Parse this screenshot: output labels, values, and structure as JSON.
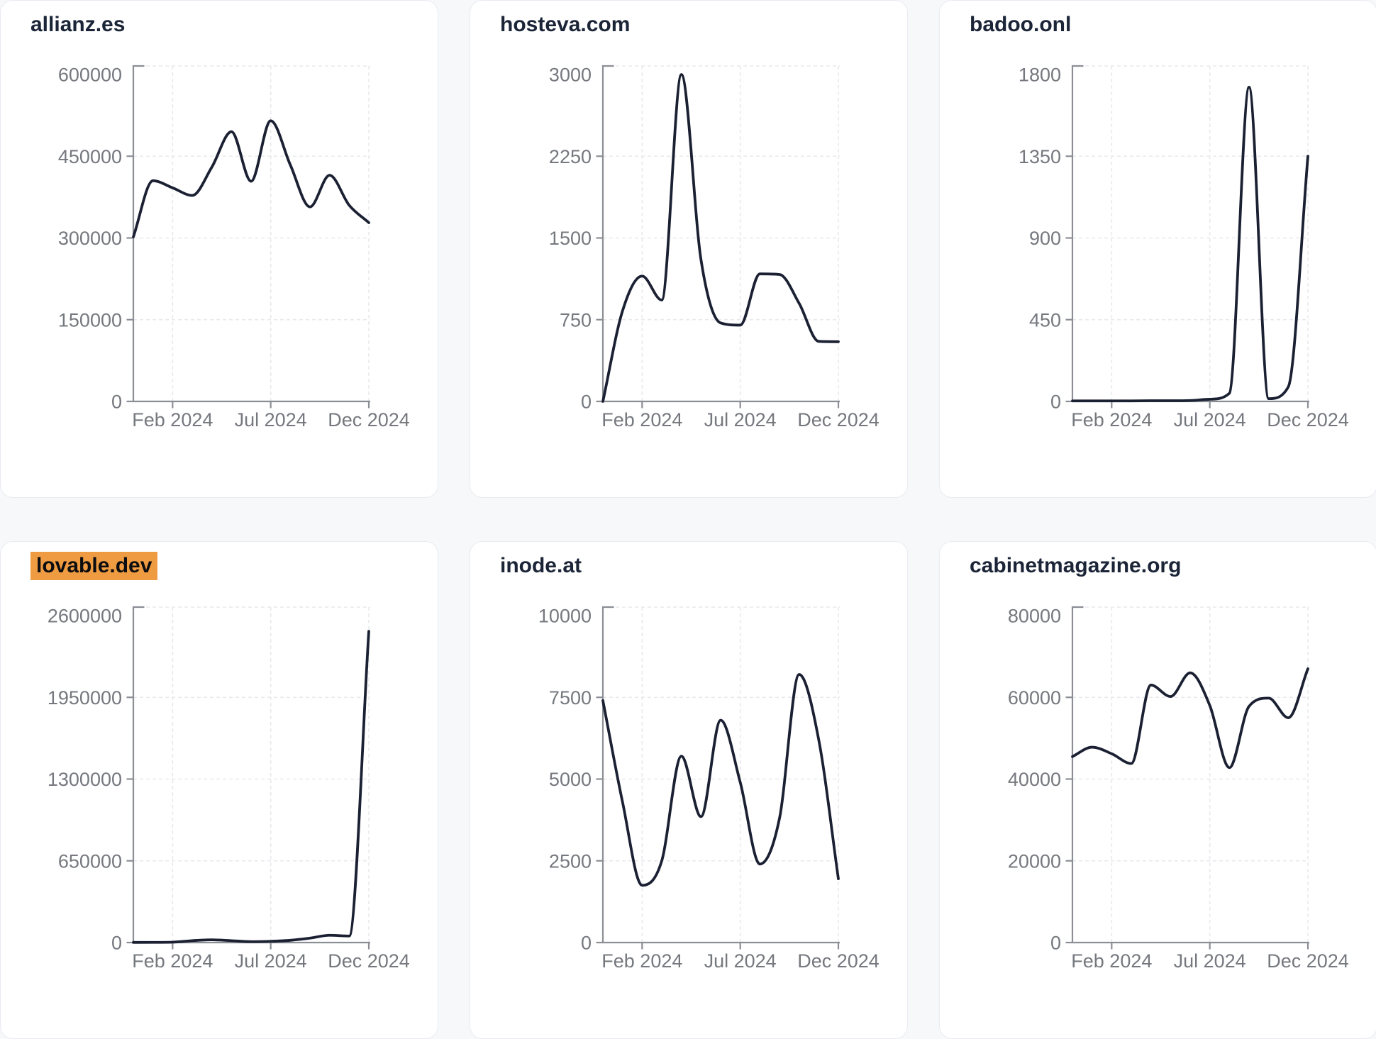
{
  "page": {
    "background_color": "#f7f8fa"
  },
  "styles": {
    "card_background": "#ffffff",
    "card_border_color": "#e9ebf1",
    "title_color": "#1b2537",
    "line_color": "#1b2133",
    "axis_color": "#8b8e94",
    "tick_label_color": "#75787e",
    "grid_color": "#e8e9ec",
    "highlight_background": "#ef9b41",
    "highlight_text_color": "#0c0d10"
  },
  "x_axis": {
    "months": [
      "Dec 2023",
      "Jan 2024",
      "Feb 2024",
      "Mar 2024",
      "Apr 2024",
      "May 2024",
      "Jun 2024",
      "Jul 2024",
      "Aug 2024",
      "Sep 2024",
      "Oct 2024",
      "Nov 2024",
      "Dec 2024"
    ],
    "tick_labels": [
      "Feb 2024",
      "Jul 2024",
      "Dec 2024"
    ],
    "tick_month_indices": [
      2,
      7,
      12
    ]
  },
  "chart_data": [
    {
      "type": "line",
      "title": "allianz.es",
      "highlighted": false,
      "y_tick_labels": [
        "600000",
        "450000",
        "300000",
        "150000",
        "0"
      ],
      "y_min": 0,
      "y_max": 600000,
      "grid": true,
      "legend": false,
      "values": [
        302000,
        405000,
        392000,
        378000,
        430000,
        495000,
        404000,
        515000,
        434000,
        357000,
        415000,
        360000,
        328000
      ]
    },
    {
      "type": "line",
      "title": "hosteva.com",
      "highlighted": false,
      "y_tick_labels": [
        "3000",
        "2250",
        "1500",
        "750",
        "0"
      ],
      "y_min": 0,
      "y_max": 3000,
      "grid": true,
      "legend": false,
      "values": [
        0,
        830,
        1150,
        930,
        3000,
        1300,
        720,
        700,
        1170,
        1165,
        900,
        551,
        548
      ]
    },
    {
      "type": "line",
      "title": "badoo.onl",
      "highlighted": false,
      "y_tick_labels": [
        "1800",
        "1350",
        "900",
        "450",
        "0"
      ],
      "y_min": 0,
      "y_max": 1800,
      "grid": true,
      "legend": false,
      "values": [
        3,
        3,
        3,
        3,
        4,
        4,
        5,
        12,
        45,
        1730,
        15,
        80,
        1350
      ]
    },
    {
      "type": "line",
      "title": "lovable.dev",
      "highlighted": true,
      "y_tick_labels": [
        "2600000",
        "1950000",
        "1300000",
        "650000",
        "0"
      ],
      "y_min": 0,
      "y_max": 2600000,
      "grid": true,
      "legend": false,
      "values": [
        1000,
        1500,
        3000,
        15000,
        22000,
        15000,
        7000,
        10000,
        18000,
        35000,
        58000,
        52000,
        2475000
      ]
    },
    {
      "type": "line",
      "title": "inode.at",
      "highlighted": false,
      "y_tick_labels": [
        "10000",
        "7500",
        "5000",
        "2500",
        "0"
      ],
      "y_min": 0,
      "y_max": 10000,
      "grid": true,
      "legend": false,
      "values": [
        7400,
        4300,
        1750,
        2500,
        5700,
        3850,
        6800,
        4900,
        2400,
        3800,
        8200,
        6200,
        1950
      ]
    },
    {
      "type": "line",
      "title": "cabinetmagazine.org",
      "highlighted": false,
      "y_tick_labels": [
        "80000",
        "60000",
        "40000",
        "20000",
        "0"
      ],
      "y_min": 0,
      "y_max": 80000,
      "grid": true,
      "legend": false,
      "values": [
        45500,
        47800,
        46200,
        43800,
        63000,
        60200,
        66000,
        58000,
        42800,
        57800,
        59800,
        55000,
        67000
      ]
    }
  ]
}
